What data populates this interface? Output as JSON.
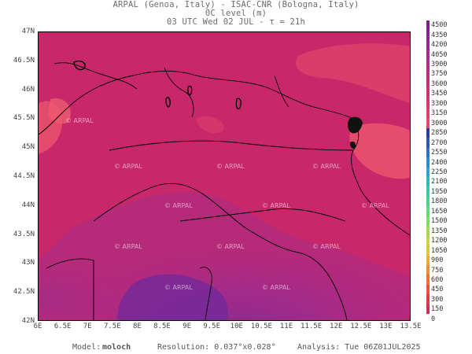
{
  "header": {
    "line1": "ARPAL (Genoa, Italy)  -  ISAC-CNR (Bologna, Italy)",
    "line2": "0C level (m)",
    "line3": "03 UTC Wed 02 JUL  -  τ = 21h"
  },
  "map": {
    "lat_labels": [
      "47N",
      "46.5N",
      "46N",
      "45.5N",
      "45N",
      "44.5N",
      "44N",
      "43.5N",
      "43N",
      "42.5N",
      "42N"
    ],
    "lon_labels": [
      "6E",
      "6.5E",
      "7E",
      "7.5E",
      "8E",
      "8.5E",
      "9E",
      "9.5E",
      "10E",
      "10.5E",
      "11E",
      "11.5E",
      "12E",
      "12.5E",
      "13E",
      "13.5E"
    ],
    "watermark": "© ARPAL"
  },
  "colorbar": {
    "levels": [
      "4500",
      "4350",
      "4200",
      "4050",
      "3900",
      "3750",
      "3600",
      "3450",
      "3300",
      "3150",
      "3000",
      "2850",
      "2700",
      "2550",
      "2400",
      "2250",
      "2100",
      "1950",
      "1800",
      "1650",
      "1500",
      "1350",
      "1200",
      "1050",
      "900",
      "750",
      "600",
      "450",
      "300",
      "150",
      "0"
    ]
  },
  "footer": {
    "model_label": "Model:",
    "model_value": "moloch",
    "resolution": "Resolution: 0.037°x0.028°",
    "analysis": "Analysis: Tue 06Z01JUL2025"
  },
  "colors": {
    "field_main": "#c8286a",
    "field_low": "#9a2a8e",
    "field_high": "#e9506b",
    "colorbar_top": "#7a1f8f"
  }
}
